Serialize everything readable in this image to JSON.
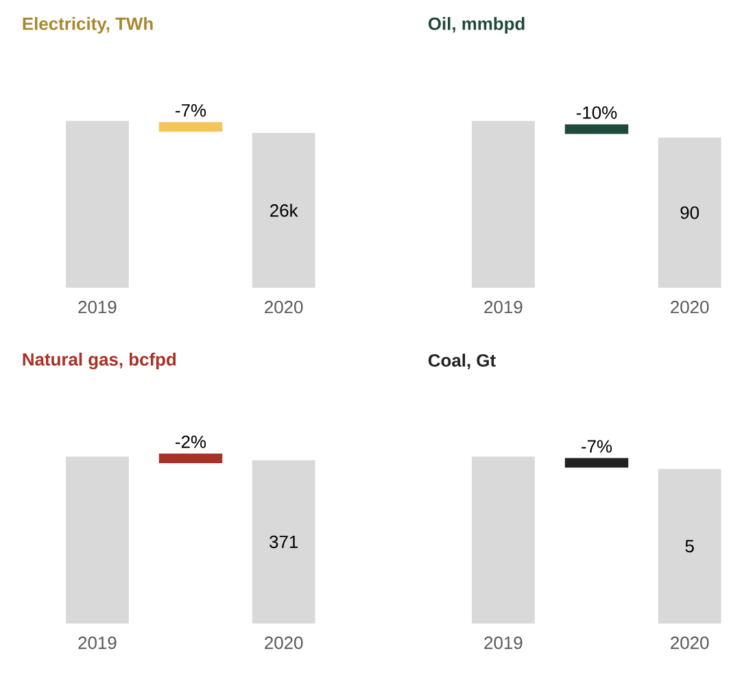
{
  "chart_data": [
    {
      "type": "bar",
      "title": "Electricity, TWh",
      "categories": [
        "2019",
        "2020"
      ],
      "values": [
        28000,
        26000
      ],
      "tick_labels": "x",
      "color": "#d9d9d9",
      "value_labels": [
        null,
        "26k"
      ],
      "annotations": [
        "-7%"
      ]
    },
    {
      "type": "bar",
      "title": "Oil, mmbpd",
      "categories": [
        "2019",
        "2020"
      ],
      "values": [
        100,
        90
      ],
      "tick_labels": "x",
      "color": "#d9d9d9",
      "value_labels": [
        null,
        "90"
      ],
      "annotations": [
        "-10%"
      ]
    },
    {
      "type": "bar",
      "title": "Natural gas, bcfpd",
      "categories": [
        "2019",
        "2020"
      ],
      "values": [
        379,
        371
      ],
      "tick_labels": "x",
      "color": "#d9d9d9",
      "value_labels": [
        null,
        "371"
      ],
      "annotations": [
        "-2%"
      ]
    },
    {
      "type": "bar",
      "title": "Coal, Gt",
      "categories": [
        "2019",
        "2020"
      ],
      "values": [
        5.4,
        5
      ],
      "tick_labels": "x",
      "color": "#d9d9d9",
      "value_labels": [
        null,
        "5"
      ],
      "annotations": [
        "-7%"
      ]
    }
  ]
}
